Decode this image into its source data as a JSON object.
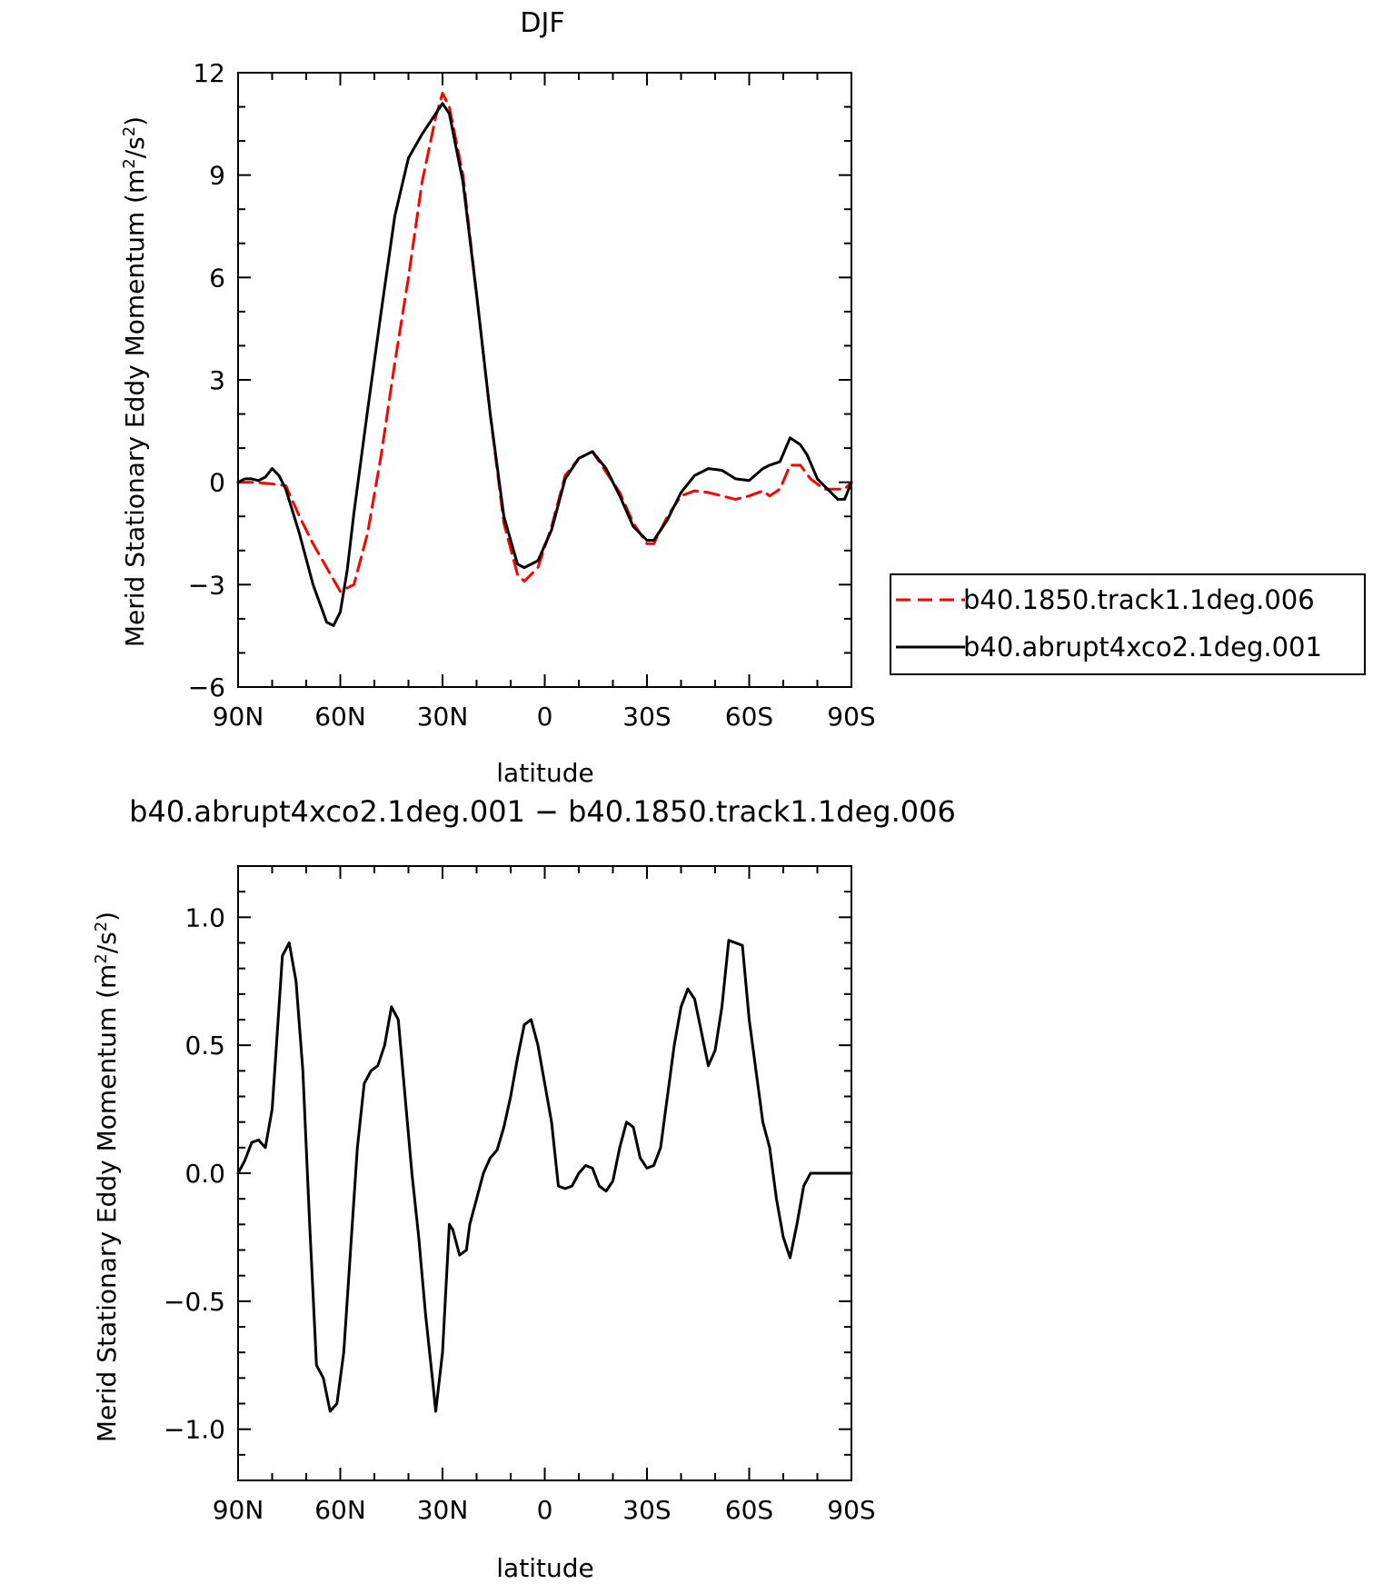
{
  "chart_data": [
    {
      "type": "line",
      "title": "DJF",
      "xlabel": "latitude",
      "ylabel_parts": {
        "pre": "Merid Stationary Eddy Momentum (m",
        "sup1": "2",
        "mid": "/s",
        "sup2": "2",
        "post": ")"
      },
      "xlim": [
        90,
        -90
      ],
      "ylim": [
        -6,
        12
      ],
      "xticks": [
        {
          "value": 90,
          "label": "90N"
        },
        {
          "value": 60,
          "label": "60N"
        },
        {
          "value": 30,
          "label": "30N"
        },
        {
          "value": 0,
          "label": "0"
        },
        {
          "value": -30,
          "label": "30S"
        },
        {
          "value": -60,
          "label": "60S"
        },
        {
          "value": -90,
          "label": "90S"
        }
      ],
      "yticks": [
        {
          "value": 12,
          "label": "12"
        },
        {
          "value": 9,
          "label": "9"
        },
        {
          "value": 6,
          "label": "6"
        },
        {
          "value": 3,
          "label": "3"
        },
        {
          "value": 0,
          "label": "0"
        },
        {
          "value": -3,
          "label": "−3"
        },
        {
          "value": -6,
          "label": "−6"
        }
      ],
      "legend": "right",
      "series": [
        {
          "name": "b40.1850.track1.1deg.006",
          "color": "#ff0000",
          "dash": "dashed",
          "x": [
            90,
            85,
            80,
            76,
            72,
            68,
            64,
            60,
            56,
            52,
            48,
            44,
            40,
            36,
            32,
            30,
            28,
            24,
            20,
            16,
            12,
            8,
            6,
            2,
            -2,
            -6,
            -10,
            -14,
            -18,
            -22,
            -26,
            -30,
            -32,
            -36,
            -40,
            -44,
            -48,
            -52,
            -56,
            -60,
            -64,
            -66,
            -69,
            -72,
            -75,
            -78,
            -82,
            -86,
            -88,
            -90
          ],
          "y": [
            0.0,
            0.0,
            -0.05,
            -0.1,
            -1.0,
            -1.8,
            -2.5,
            -3.2,
            -3.0,
            -1.5,
            0.8,
            3.5,
            6.0,
            8.8,
            10.7,
            11.4,
            11.0,
            9.0,
            5.5,
            2.0,
            -1.2,
            -2.7,
            -2.9,
            -2.5,
            -1.3,
            0.2,
            0.7,
            0.9,
            0.3,
            -0.3,
            -1.2,
            -1.8,
            -1.8,
            -1.0,
            -0.4,
            -0.25,
            -0.3,
            -0.4,
            -0.5,
            -0.4,
            -0.25,
            -0.4,
            -0.2,
            0.5,
            0.5,
            0.1,
            -0.2,
            -0.2,
            -0.2,
            0.0
          ]
        },
        {
          "name": "b40.abrupt4xco2.1deg.001",
          "color": "#000000",
          "dash": "solid",
          "x": [
            90,
            88,
            86,
            84,
            82,
            80,
            78,
            76,
            72,
            68,
            64,
            62,
            60,
            58,
            56,
            52,
            48,
            44,
            40,
            36,
            32,
            30,
            28,
            24,
            20,
            16,
            12,
            8,
            6,
            2,
            -2,
            -6,
            -10,
            -14,
            -18,
            -22,
            -26,
            -30,
            -32,
            -36,
            -40,
            -44,
            -48,
            -52,
            -56,
            -60,
            -64,
            -66,
            -69,
            -72,
            -75,
            -77,
            -80,
            -82,
            -86,
            -88,
            -90
          ],
          "y": [
            0.0,
            0.1,
            0.1,
            0.05,
            0.15,
            0.4,
            0.2,
            -0.2,
            -1.5,
            -3.0,
            -4.1,
            -4.2,
            -3.8,
            -2.6,
            -0.9,
            2.1,
            5.0,
            7.8,
            9.5,
            10.2,
            10.8,
            11.1,
            10.8,
            8.8,
            5.5,
            2.0,
            -1.0,
            -2.4,
            -2.5,
            -2.3,
            -1.4,
            0.1,
            0.7,
            0.9,
            0.4,
            -0.4,
            -1.3,
            -1.7,
            -1.7,
            -1.1,
            -0.3,
            0.2,
            0.4,
            0.35,
            0.1,
            0.05,
            0.4,
            0.5,
            0.6,
            1.3,
            1.1,
            0.8,
            0.1,
            -0.1,
            -0.5,
            -0.5,
            0.0
          ]
        }
      ]
    },
    {
      "type": "line",
      "title": "b40.abrupt4xco2.1deg.001 − b40.1850.track1.1deg.006",
      "xlabel": "latitude",
      "ylabel_parts": {
        "pre": "Merid Stationary Eddy Momentum (m",
        "sup1": "2",
        "mid": "/s",
        "sup2": "2",
        "post": ")"
      },
      "xlim": [
        90,
        -90
      ],
      "ylim": [
        -1.2,
        1.2
      ],
      "xticks": [
        {
          "value": 90,
          "label": "90N"
        },
        {
          "value": 60,
          "label": "60N"
        },
        {
          "value": 30,
          "label": "30N"
        },
        {
          "value": 0,
          "label": "0"
        },
        {
          "value": -30,
          "label": "30S"
        },
        {
          "value": -60,
          "label": "60S"
        },
        {
          "value": -90,
          "label": "90S"
        }
      ],
      "yticks": [
        {
          "value": 1.0,
          "label": "1.0"
        },
        {
          "value": 0.5,
          "label": "0.5"
        },
        {
          "value": 0.0,
          "label": "0.0"
        },
        {
          "value": -0.5,
          "label": "−0.5"
        },
        {
          "value": -1.0,
          "label": "−1.0"
        }
      ],
      "series": [
        {
          "color": "#000000",
          "dash": "solid",
          "x": [
            90,
            88,
            86,
            84,
            82,
            80,
            79,
            77,
            75,
            73,
            71,
            69,
            67,
            65,
            63,
            61,
            59,
            57,
            55,
            53,
            51,
            49,
            47,
            45,
            43,
            41,
            39,
            37,
            35,
            33,
            32,
            30,
            28,
            27,
            25,
            23,
            22,
            20,
            18,
            16,
            14,
            12,
            10,
            8,
            6,
            4,
            2,
            0,
            -2,
            -4,
            -6,
            -8,
            -10,
            -12,
            -14,
            -16,
            -18,
            -20,
            -22,
            -24,
            -26,
            -28,
            -30,
            -32,
            -34,
            -36,
            -38,
            -40,
            -42,
            -44,
            -46,
            -48,
            -50,
            -52,
            -54,
            -56,
            -58,
            -60,
            -62,
            -64,
            -66,
            -68,
            -70,
            -72,
            -74,
            -76,
            -78,
            -80,
            -82,
            -84,
            -86,
            -88,
            -90
          ],
          "y": [
            0.0,
            0.05,
            0.12,
            0.13,
            0.1,
            0.25,
            0.45,
            0.85,
            0.9,
            0.75,
            0.4,
            -0.2,
            -0.75,
            -0.8,
            -0.93,
            -0.9,
            -0.7,
            -0.3,
            0.1,
            0.35,
            0.4,
            0.42,
            0.5,
            0.65,
            0.6,
            0.3,
            0.0,
            -0.25,
            -0.55,
            -0.8,
            -0.93,
            -0.7,
            -0.2,
            -0.22,
            -0.32,
            -0.3,
            -0.2,
            -0.1,
            0.0,
            0.06,
            0.09,
            0.18,
            0.3,
            0.45,
            0.58,
            0.6,
            0.5,
            0.35,
            0.2,
            -0.05,
            -0.06,
            -0.05,
            0.0,
            0.03,
            0.02,
            -0.05,
            -0.07,
            -0.03,
            0.1,
            0.2,
            0.18,
            0.06,
            0.02,
            0.03,
            0.1,
            0.3,
            0.5,
            0.65,
            0.72,
            0.68,
            0.55,
            0.42,
            0.48,
            0.65,
            0.91,
            0.9,
            0.89,
            0.6,
            0.4,
            0.2,
            0.1,
            -0.1,
            -0.25,
            -0.33,
            -0.2,
            -0.05,
            0.0,
            0.0,
            0.0,
            0.0,
            0.0,
            0.0,
            0.0
          ]
        }
      ]
    }
  ]
}
